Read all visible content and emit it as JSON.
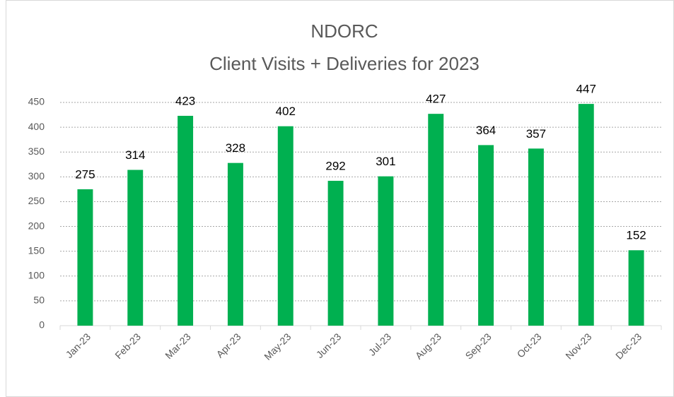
{
  "chart_data": {
    "type": "bar",
    "title": [
      "NDORC",
      "Client Visits + Deliveries for 2023"
    ],
    "categories": [
      "Jan-23",
      "Feb-23",
      "Mar-23",
      "Apr-23",
      "May-23",
      "Jun-23",
      "Jul-23",
      "Aug-23",
      "Sep-23",
      "Oct-23",
      "Nov-23",
      "Dec-23"
    ],
    "values": [
      275,
      314,
      423,
      328,
      402,
      292,
      301,
      427,
      364,
      357,
      447,
      152
    ],
    "color": "#00b050",
    "ylim": [
      0,
      450
    ],
    "yticks": [
      0,
      50,
      100,
      150,
      200,
      250,
      300,
      350,
      400,
      450
    ],
    "grid": true
  }
}
